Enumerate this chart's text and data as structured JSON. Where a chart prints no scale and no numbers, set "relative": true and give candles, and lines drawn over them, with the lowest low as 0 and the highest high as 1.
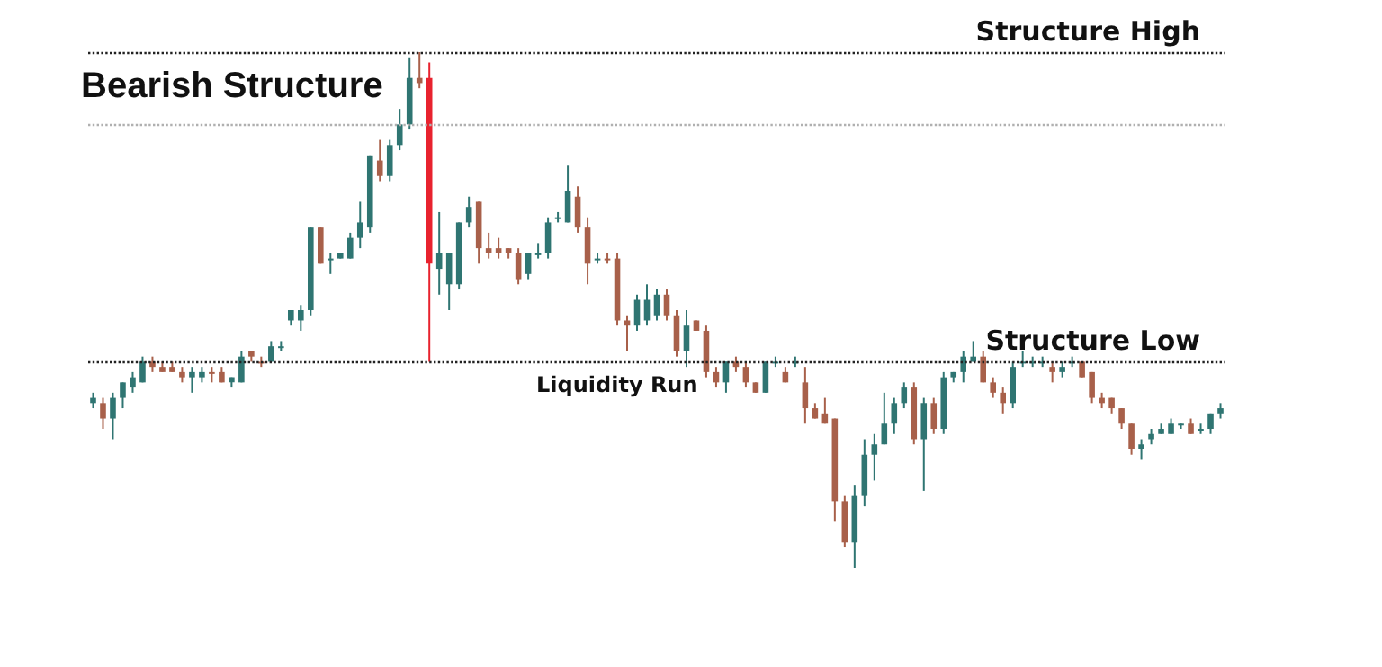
{
  "chart_data": {
    "type": "candlestick",
    "title": "Bearish Structure",
    "relative": true,
    "categories": [
      null,
      null,
      null,
      null,
      null,
      null,
      null,
      null,
      null,
      null,
      null,
      null,
      null,
      null,
      null,
      null,
      null,
      null,
      null,
      null,
      null,
      null,
      null,
      null,
      null,
      null,
      null,
      null,
      null,
      null,
      null,
      null,
      null,
      null,
      null,
      null,
      null,
      null,
      null,
      null,
      null,
      null,
      null,
      null,
      null,
      null,
      null,
      null,
      null,
      null,
      null,
      null,
      null,
      null,
      null,
      null,
      null,
      null,
      null,
      null,
      null,
      null,
      null,
      null,
      null,
      null,
      null,
      null,
      null,
      null,
      null,
      null,
      null,
      null,
      null,
      null,
      null,
      null,
      null,
      null,
      null,
      null,
      null,
      null,
      null,
      null,
      null,
      null,
      null,
      null,
      null,
      null,
      null,
      null,
      null,
      null,
      null,
      null,
      null,
      null,
      null,
      null,
      null,
      null,
      null,
      null,
      null,
      null,
      null,
      null,
      null,
      null,
      null,
      null,
      null
    ],
    "ohlc": [
      [
        0.32,
        0.34,
        0.31,
        0.33
      ],
      [
        0.32,
        0.33,
        0.27,
        0.29
      ],
      [
        0.29,
        0.34,
        0.25,
        0.33
      ],
      [
        0.33,
        0.36,
        0.31,
        0.36
      ],
      [
        0.35,
        0.38,
        0.34,
        0.37
      ],
      [
        0.36,
        0.41,
        0.36,
        0.4
      ],
      [
        0.4,
        0.41,
        0.38,
        0.39
      ],
      [
        0.39,
        0.4,
        0.38,
        0.38
      ],
      [
        0.39,
        0.4,
        0.38,
        0.38
      ],
      [
        0.38,
        0.39,
        0.36,
        0.37
      ],
      [
        0.37,
        0.39,
        0.34,
        0.38
      ],
      [
        0.37,
        0.39,
        0.36,
        0.38
      ],
      [
        0.38,
        0.39,
        0.36,
        0.38
      ],
      [
        0.38,
        0.39,
        0.36,
        0.36
      ],
      [
        0.36,
        0.37,
        0.35,
        0.37
      ],
      [
        0.36,
        0.42,
        0.36,
        0.41
      ],
      [
        0.42,
        0.42,
        0.4,
        0.41
      ],
      [
        0.4,
        0.41,
        0.39,
        0.4
      ],
      [
        0.4,
        0.44,
        0.4,
        0.43
      ],
      [
        0.43,
        0.44,
        0.42,
        0.43
      ],
      [
        0.48,
        0.5,
        0.47,
        0.5
      ],
      [
        0.48,
        0.51,
        0.46,
        0.5
      ],
      [
        0.5,
        0.66,
        0.49,
        0.66
      ],
      [
        0.66,
        0.66,
        0.59,
        0.59
      ],
      [
        0.6,
        0.61,
        0.57,
        0.6
      ],
      [
        0.6,
        0.61,
        0.6,
        0.61
      ],
      [
        0.6,
        0.65,
        0.6,
        0.64
      ],
      [
        0.64,
        0.71,
        0.62,
        0.67
      ],
      [
        0.66,
        0.8,
        0.65,
        0.8
      ],
      [
        0.79,
        0.83,
        0.75,
        0.76
      ],
      [
        0.76,
        0.83,
        0.75,
        0.82
      ],
      [
        0.82,
        0.89,
        0.81,
        0.86
      ],
      [
        0.86,
        0.99,
        0.85,
        0.95
      ],
      [
        0.95,
        1,
        0.93,
        0.94
      ],
      [
        0.95,
        0.98,
        0.4,
        0.59
      ],
      [
        0.58,
        0.69,
        0.53,
        0.61
      ],
      [
        0.55,
        0.61,
        0.5,
        0.61
      ],
      [
        0.55,
        0.67,
        0.54,
        0.67
      ],
      [
        0.67,
        0.72,
        0.66,
        0.7
      ],
      [
        0.71,
        0.71,
        0.59,
        0.62
      ],
      [
        0.62,
        0.65,
        0.6,
        0.61
      ],
      [
        0.62,
        0.64,
        0.6,
        0.61
      ],
      [
        0.62,
        0.62,
        0.6,
        0.61
      ],
      [
        0.61,
        0.62,
        0.55,
        0.56
      ],
      [
        0.57,
        0.61,
        0.56,
        0.61
      ],
      [
        0.61,
        0.63,
        0.6,
        0.61
      ],
      [
        0.61,
        0.68,
        0.6,
        0.67
      ],
      [
        0.68,
        0.69,
        0.67,
        0.68
      ],
      [
        0.67,
        0.78,
        0.67,
        0.73
      ],
      [
        0.72,
        0.74,
        0.65,
        0.66
      ],
      [
        0.66,
        0.68,
        0.55,
        0.59
      ],
      [
        0.6,
        0.61,
        0.59,
        0.6
      ],
      [
        0.6,
        0.61,
        0.59,
        0.6
      ],
      [
        0.6,
        0.61,
        0.47,
        0.48
      ],
      [
        0.48,
        0.49,
        0.42,
        0.47
      ],
      [
        0.47,
        0.53,
        0.46,
        0.52
      ],
      [
        0.48,
        0.55,
        0.47,
        0.52
      ],
      [
        0.49,
        0.54,
        0.48,
        0.53
      ],
      [
        0.53,
        0.54,
        0.48,
        0.49
      ],
      [
        0.49,
        0.5,
        0.41,
        0.42
      ],
      [
        0.42,
        0.5,
        0.39,
        0.47
      ],
      [
        0.48,
        0.48,
        0.46,
        0.46
      ],
      [
        0.46,
        0.47,
        0.37,
        0.38
      ],
      [
        0.38,
        0.39,
        0.35,
        0.36
      ],
      [
        0.36,
        0.4,
        0.34,
        0.4
      ],
      [
        0.4,
        0.41,
        0.38,
        0.39
      ],
      [
        0.39,
        0.4,
        0.35,
        0.36
      ],
      [
        0.36,
        0.36,
        0.34,
        0.34
      ],
      [
        0.34,
        0.4,
        0.34,
        0.4
      ],
      [
        0.4,
        0.41,
        0.39,
        0.4
      ],
      [
        0.38,
        0.39,
        0.36,
        0.36
      ],
      [
        0.4,
        0.41,
        0.39,
        0.4
      ],
      [
        0.36,
        0.39,
        0.28,
        0.31
      ],
      [
        0.31,
        0.32,
        0.29,
        0.29
      ],
      [
        0.3,
        0.33,
        0.28,
        0.28
      ],
      [
        0.29,
        0.29,
        0.09,
        0.13
      ],
      [
        0.13,
        0.14,
        0.04,
        0.05
      ],
      [
        0.05,
        0.16,
        0,
        0.14
      ],
      [
        0.14,
        0.25,
        0.12,
        0.22
      ],
      [
        0.22,
        0.26,
        0.17,
        0.24
      ],
      [
        0.24,
        0.34,
        0.24,
        0.28
      ],
      [
        0.28,
        0.33,
        0.26,
        0.32
      ],
      [
        0.32,
        0.36,
        0.31,
        0.35
      ],
      [
        0.35,
        0.36,
        0.24,
        0.25
      ],
      [
        0.25,
        0.33,
        0.15,
        0.32
      ],
      [
        0.32,
        0.33,
        0.26,
        0.27
      ],
      [
        0.27,
        0.38,
        0.26,
        0.37
      ],
      [
        0.37,
        0.38,
        0.36,
        0.38
      ],
      [
        0.38,
        0.42,
        0.36,
        0.41
      ],
      [
        0.4,
        0.44,
        0.4,
        0.41
      ],
      [
        0.41,
        0.42,
        0.36,
        0.36
      ],
      [
        0.36,
        0.37,
        0.33,
        0.34
      ],
      [
        0.34,
        0.35,
        0.3,
        0.32
      ],
      [
        0.32,
        0.4,
        0.31,
        0.39
      ],
      [
        0.4,
        0.42,
        0.39,
        0.4
      ],
      [
        0.4,
        0.41,
        0.39,
        0.4
      ],
      [
        0.4,
        0.41,
        0.39,
        0.4
      ],
      [
        0.39,
        0.4,
        0.36,
        0.38
      ],
      [
        0.38,
        0.4,
        0.37,
        0.39
      ],
      [
        0.4,
        0.41,
        0.39,
        0.4
      ],
      [
        0.4,
        0.4,
        0.37,
        0.37
      ],
      [
        0.38,
        0.38,
        0.32,
        0.33
      ],
      [
        0.33,
        0.34,
        0.31,
        0.32
      ],
      [
        0.33,
        0.33,
        0.3,
        0.31
      ],
      [
        0.31,
        0.31,
        0.27,
        0.28
      ],
      [
        0.28,
        0.28,
        0.22,
        0.23
      ],
      [
        0.23,
        0.25,
        0.21,
        0.24
      ],
      [
        0.25,
        0.27,
        0.24,
        0.26
      ],
      [
        0.26,
        0.28,
        0.26,
        0.27
      ],
      [
        0.26,
        0.29,
        0.26,
        0.28
      ],
      [
        0.28,
        0.28,
        0.27,
        0.28
      ],
      [
        0.28,
        0.29,
        0.26,
        0.26
      ],
      [
        0.27,
        0.28,
        0.26,
        0.27
      ],
      [
        0.27,
        0.3,
        0.26,
        0.3
      ],
      [
        0.3,
        0.32,
        0.29,
        0.31
      ]
    ],
    "colors": [
      "#2f7572",
      "#a8604a",
      "#2f7572",
      "#2f7572",
      "#2f7572",
      "#2f7572",
      "#a8604a",
      "#a8604a",
      "#a8604a",
      "#a8604a",
      "#2f7572",
      "#2f7572",
      "#a8604a",
      "#a8604a",
      "#2f7572",
      "#2f7572",
      "#a8604a",
      "#a8604a",
      "#2f7572",
      "#2f7572",
      "#2f7572",
      "#2f7572",
      "#2f7572",
      "#a8604a",
      "#2f7572",
      "#2f7572",
      "#2f7572",
      "#2f7572",
      "#2f7572",
      "#a8604a",
      "#2f7572",
      "#2f7572",
      "#2f7572",
      "#a8604a",
      "#e8222e",
      "#2f7572",
      "#2f7572",
      "#2f7572",
      "#2f7572",
      "#a8604a",
      "#a8604a",
      "#a8604a",
      "#a8604a",
      "#a8604a",
      "#2f7572",
      "#2f7572",
      "#2f7572",
      "#2f7572",
      "#2f7572",
      "#a8604a",
      "#a8604a",
      "#2f7572",
      "#a8604a",
      "#a8604a",
      "#a8604a",
      "#2f7572",
      "#2f7572",
      "#2f7572",
      "#a8604a",
      "#a8604a",
      "#2f7572",
      "#a8604a",
      "#a8604a",
      "#a8604a",
      "#2f7572",
      "#a8604a",
      "#a8604a",
      "#a8604a",
      "#2f7572",
      "#2f7572",
      "#a8604a",
      "#2f7572",
      "#a8604a",
      "#a8604a",
      "#a8604a",
      "#a8604a",
      "#a8604a",
      "#2f7572",
      "#2f7572",
      "#2f7572",
      "#2f7572",
      "#2f7572",
      "#2f7572",
      "#a8604a",
      "#2f7572",
      "#a8604a",
      "#2f7572",
      "#2f7572",
      "#2f7572",
      "#2f7572",
      "#a8604a",
      "#a8604a",
      "#a8604a",
      "#2f7572",
      "#2f7572",
      "#2f7572",
      "#2f7572",
      "#a8604a",
      "#2f7572",
      "#2f7572",
      "#a8604a",
      "#a8604a",
      "#a8604a",
      "#a8604a",
      "#a8604a",
      "#a8604a",
      "#2f7572",
      "#2f7572",
      "#2f7572",
      "#2f7572",
      "#2f7572",
      "#a8604a",
      "#2f7572",
      "#2f7572",
      "#2f7572"
    ],
    "ref_lines": [
      {
        "axis": "y",
        "value": 1,
        "label": "Structure High",
        "color": "#222222",
        "line_style": "dotted"
      },
      {
        "axis": "y",
        "value": 0.86,
        "label": null,
        "color": "#b0b0b0",
        "line_style": "dotted"
      },
      {
        "axis": "y",
        "value": 0.4,
        "label": "Structure Low",
        "color": "#222222",
        "line_style": "dotted"
      }
    ],
    "annotations": [
      "Liquidity Run"
    ],
    "grid": false
  }
}
